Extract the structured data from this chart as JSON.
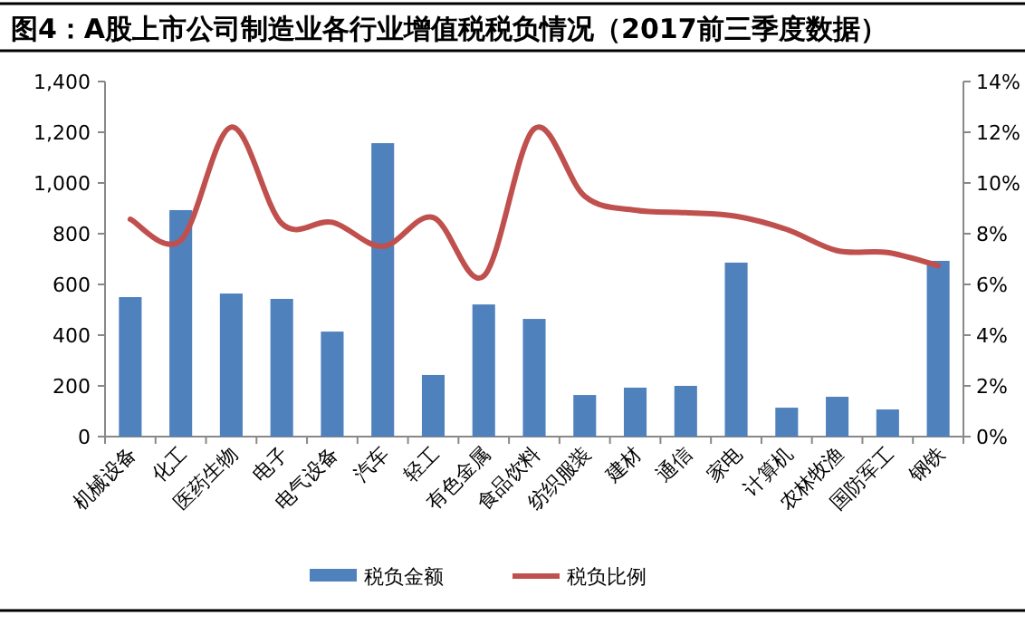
{
  "chart_data": {
    "type": "bar",
    "title": "图4：A股上市公司制造业各行业增值税税负情况（2017前三季度数据）",
    "categories": [
      "机械设备",
      "化工",
      "医药生物",
      "电子",
      "电气设备",
      "汽车",
      "轻工",
      "有色金属",
      "食品饮料",
      "纺织服装",
      "建材",
      "通信",
      "家电",
      "计算机",
      "农林牧渔",
      "国防军工",
      "钢铁"
    ],
    "series": [
      {
        "name": "税负金额",
        "color": "#4f81bd",
        "values": [
          550,
          893,
          564,
          543,
          414,
          1157,
          243,
          521,
          464,
          164,
          193,
          200,
          686,
          114,
          157,
          107,
          693
        ]
      },
      {
        "name": "税负比例",
        "type": "line",
        "axis": "y2",
        "color": "#c0504d",
        "values": [
          8.57,
          7.74,
          12.2,
          8.4,
          8.45,
          7.5,
          8.64,
          6.33,
          12.14,
          9.48,
          8.93,
          8.83,
          8.69,
          8.17,
          7.33,
          7.26,
          6.74
        ]
      }
    ],
    "ylim": [
      0,
      1400
    ],
    "yticks": [
      0,
      200,
      400,
      600,
      800,
      {
        "value": 1000,
        "label": "1,000"
      },
      {
        "value": 1200,
        "label": "1,200"
      },
      {
        "value": 1400,
        "label": "1,400"
      }
    ],
    "y2lim": [
      0,
      14
    ],
    "y2ticks": [
      {
        "value": 0,
        "label": "0%"
      },
      {
        "value": 2,
        "label": "2%"
      },
      {
        "value": 4,
        "label": "4%"
      },
      {
        "value": 6,
        "label": "6%"
      },
      {
        "value": 8,
        "label": "8%"
      },
      {
        "value": 10,
        "label": "10%"
      },
      {
        "value": 12,
        "label": "12%"
      },
      {
        "value": 14,
        "label": "14%"
      }
    ],
    "legend": "bottom",
    "grid": false
  }
}
